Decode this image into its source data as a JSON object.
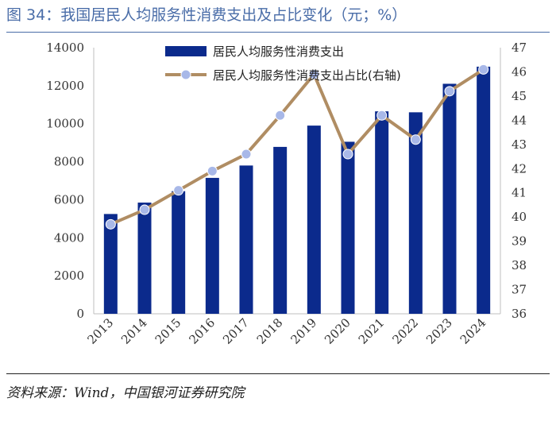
{
  "title": "图 34：我国居民人均服务性消费支出及占比变化（元；%）",
  "source": "资料来源：Wind，中国银河证券研究院",
  "colors": {
    "bar": "#0b2a8c",
    "line": "#b08d63",
    "marker": "#a8b8e8",
    "title": "#4a6da8"
  },
  "chart_data": {
    "type": "bar+line",
    "categories": [
      "2013",
      "2014",
      "2015",
      "2016",
      "2017",
      "2018",
      "2019",
      "2020",
      "2021",
      "2022",
      "2023",
      "2024"
    ],
    "series": [
      {
        "name": "居民人均服务性消费支出",
        "axis": "left",
        "type": "bar",
        "values": [
          5250,
          5850,
          6450,
          7150,
          7800,
          8780,
          9900,
          9050,
          10650,
          10600,
          12100,
          13000
        ]
      },
      {
        "name": "居民人均服务性消费支出占比(右轴)",
        "axis": "right",
        "type": "line",
        "values": [
          39.7,
          40.3,
          41.1,
          41.9,
          42.6,
          44.2,
          45.9,
          42.6,
          44.2,
          43.2,
          45.2,
          46.1
        ]
      }
    ],
    "y_left": {
      "min": 0,
      "max": 14000,
      "ticks": [
        0,
        2000,
        4000,
        6000,
        8000,
        10000,
        12000,
        14000
      ]
    },
    "y_right": {
      "min": 36,
      "max": 47,
      "ticks": [
        36,
        37,
        38,
        39,
        40,
        41,
        42,
        43,
        44,
        45,
        46,
        47
      ]
    },
    "legend": [
      "居民人均服务性消费支出",
      "居民人均服务性消费支出占比(右轴)"
    ]
  }
}
